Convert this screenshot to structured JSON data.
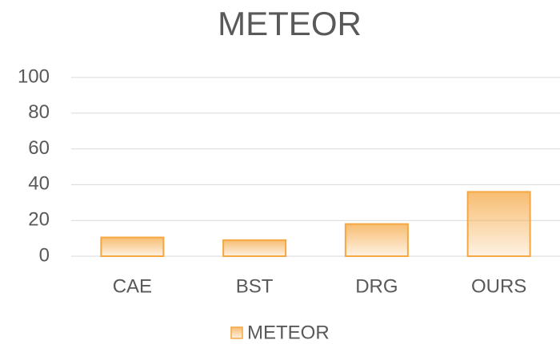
{
  "chart_data": {
    "type": "bar",
    "title": "METEOR",
    "categories": [
      "CAE",
      "BST",
      "DRG",
      "OURS"
    ],
    "series": [
      {
        "name": "METEOR",
        "color": "#f5a742",
        "values": [
          10.5,
          9,
          18,
          36
        ]
      }
    ],
    "ylim": [
      0,
      100
    ],
    "yticks": [
      0,
      20,
      40,
      60,
      80,
      100
    ],
    "grid": true,
    "legend": "bottom"
  }
}
